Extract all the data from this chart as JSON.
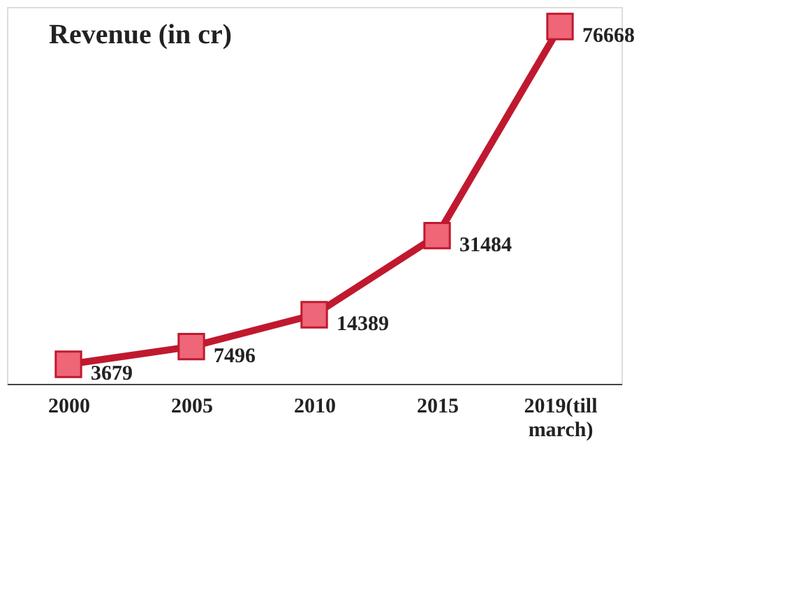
{
  "chart_data": {
    "type": "line",
    "title": "Revenue (in cr)",
    "categories": [
      "2000",
      "2005",
      "2010",
      "2015",
      "2019(till march)"
    ],
    "series": [
      {
        "color": "#c0192f",
        "values": [
          3679,
          7496,
          14389,
          31484,
          76668
        ]
      }
    ],
    "data_labels": true,
    "marker": "square",
    "line_style": "solid",
    "grid": false
  }
}
